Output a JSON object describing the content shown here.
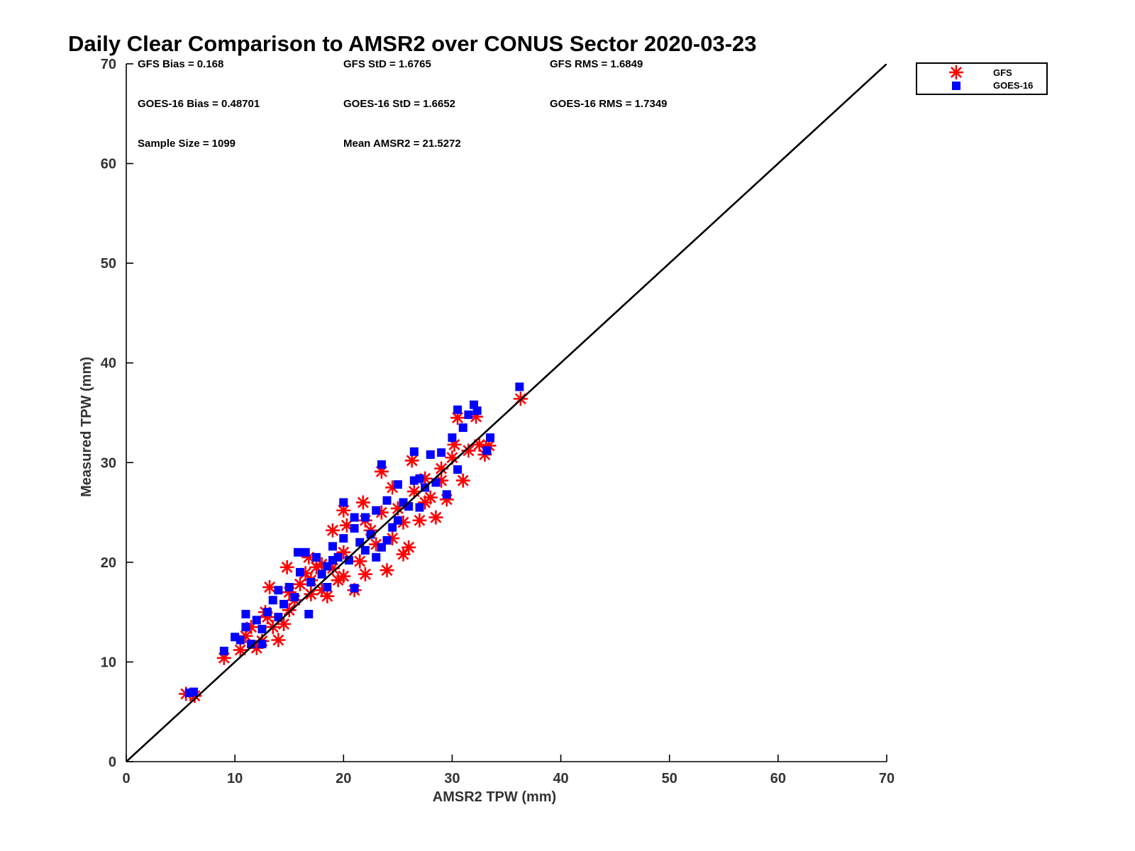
{
  "chart_data": {
    "type": "scatter",
    "title": "Daily Clear Comparison to AMSR2 over CONUS Sector 2020-03-23",
    "xlabel": "AMSR2 TPW (mm)",
    "ylabel": "Measured TPW (mm)",
    "xlim": [
      0,
      70
    ],
    "ylim": [
      0,
      70
    ],
    "xticks": [
      0,
      10,
      20,
      30,
      40,
      50,
      60,
      70
    ],
    "yticks": [
      0,
      10,
      20,
      30,
      40,
      50,
      60,
      70
    ],
    "grid": false,
    "legend_position": "outside-top-right",
    "reference_line": {
      "x": [
        0,
        70
      ],
      "y": [
        0,
        70
      ],
      "color": "#000000"
    },
    "stats": [
      "GFS Bias = 0.168",
      "GFS StD = 1.6765",
      "GFS RMS = 1.6849",
      "GOES-16 Bias = 0.48701",
      "GOES-16 StD = 1.6652",
      "GOES-16 RMS = 1.7349",
      "Sample Size = 1099",
      "Mean AMSR2 = 21.5272"
    ],
    "series": [
      {
        "name": "GFS",
        "color": "#ff0000",
        "marker": "asterisk",
        "points": [
          [
            5.5,
            6.8
          ],
          [
            6.3,
            6.6
          ],
          [
            9,
            10.4
          ],
          [
            10.5,
            11.2
          ],
          [
            11,
            12.6
          ],
          [
            11.5,
            13.5
          ],
          [
            12,
            11.4
          ],
          [
            12.5,
            12.1
          ],
          [
            13,
            14.5
          ],
          [
            13.2,
            17.5
          ],
          [
            14,
            12.2
          ],
          [
            14.5,
            13.8
          ],
          [
            15,
            15.2
          ],
          [
            15.5,
            16.2
          ],
          [
            16,
            17.8
          ],
          [
            16.5,
            18.9
          ],
          [
            17,
            16.8
          ],
          [
            17.5,
            19.5
          ],
          [
            18,
            17.2
          ],
          [
            18.5,
            16.6
          ],
          [
            19,
            19.4
          ],
          [
            19.5,
            18.2
          ],
          [
            20,
            21
          ],
          [
            20.3,
            23.7
          ],
          [
            20,
            25.2
          ],
          [
            21,
            17.2
          ],
          [
            21.5,
            20.1
          ],
          [
            22,
            18.8
          ],
          [
            22.5,
            23.2
          ],
          [
            23,
            21.8
          ],
          [
            23.5,
            29.1
          ],
          [
            24,
            19.2
          ],
          [
            24.5,
            22.4
          ],
          [
            25,
            25.4
          ],
          [
            25.5,
            20.8
          ],
          [
            26,
            21.5
          ],
          [
            26.3,
            30.2
          ],
          [
            26.5,
            27.1
          ],
          [
            27,
            24.2
          ],
          [
            27.5,
            28.4
          ],
          [
            28,
            26.5
          ],
          [
            28.5,
            24.5
          ],
          [
            29,
            28.2
          ],
          [
            29.5,
            26.3
          ],
          [
            30,
            30.5
          ],
          [
            30.5,
            34.5
          ],
          [
            31,
            28.2
          ],
          [
            31.5,
            31.2
          ],
          [
            32.2,
            34.6
          ],
          [
            32.5,
            31.8
          ],
          [
            33,
            30.8
          ],
          [
            33.4,
            31.7
          ],
          [
            36.3,
            36.4
          ],
          [
            14.8,
            19.5
          ],
          [
            16.8,
            20.5
          ],
          [
            19,
            23.2
          ],
          [
            21.8,
            26
          ],
          [
            24.5,
            27.5
          ],
          [
            22,
            24.2
          ],
          [
            18,
            19.8
          ],
          [
            15,
            17
          ],
          [
            12.8,
            15
          ],
          [
            23.5,
            25
          ],
          [
            25.5,
            24
          ],
          [
            27.5,
            26
          ],
          [
            29,
            29.4
          ],
          [
            30.2,
            31.8
          ],
          [
            20,
            18.6
          ],
          [
            17,
            18.2
          ],
          [
            13.5,
            13.5
          ]
        ]
      },
      {
        "name": "GOES-16",
        "color": "#0000ff",
        "marker": "square",
        "points": [
          [
            5.8,
            6.9
          ],
          [
            6.2,
            7
          ],
          [
            9,
            11.1
          ],
          [
            10,
            12.5
          ],
          [
            10.5,
            12.2
          ],
          [
            11,
            13.5
          ],
          [
            11.5,
            11.8
          ],
          [
            12,
            14.2
          ],
          [
            12.5,
            13.3
          ],
          [
            13,
            15
          ],
          [
            13.5,
            16.2
          ],
          [
            14,
            14.5
          ],
          [
            14.5,
            15.8
          ],
          [
            15,
            17.5
          ],
          [
            15.5,
            16.5
          ],
          [
            15.8,
            21
          ],
          [
            16.5,
            21
          ],
          [
            16.8,
            14.8
          ],
          [
            17,
            18
          ],
          [
            17.5,
            20.5
          ],
          [
            18,
            18.8
          ],
          [
            18.5,
            19.6
          ],
          [
            19,
            21.6
          ],
          [
            19.5,
            20.5
          ],
          [
            20,
            26
          ],
          [
            20,
            22.4
          ],
          [
            20.5,
            20.2
          ],
          [
            21,
            17.4
          ],
          [
            21,
            23.4
          ],
          [
            21.5,
            22
          ],
          [
            22,
            24.5
          ],
          [
            22.5,
            22.8
          ],
          [
            23,
            25.2
          ],
          [
            23.5,
            29.8
          ],
          [
            23.5,
            21.5
          ],
          [
            24,
            26.2
          ],
          [
            24.5,
            23.5
          ],
          [
            25,
            27.8
          ],
          [
            25.5,
            26
          ],
          [
            26,
            25.6
          ],
          [
            26.5,
            31.1
          ],
          [
            27,
            28.4
          ],
          [
            27.5,
            27.5
          ],
          [
            28,
            30.8
          ],
          [
            28.5,
            28
          ],
          [
            29,
            31
          ],
          [
            29.5,
            26.8
          ],
          [
            30,
            32.5
          ],
          [
            30.5,
            29.3
          ],
          [
            30.5,
            35.3
          ],
          [
            31,
            33.5
          ],
          [
            31.5,
            34.8
          ],
          [
            32,
            35.8
          ],
          [
            32.3,
            35.2
          ],
          [
            33.2,
            31.2
          ],
          [
            33.5,
            32.5
          ],
          [
            36.2,
            37.6
          ],
          [
            14,
            17.2
          ],
          [
            16,
            19
          ],
          [
            18.5,
            17.5
          ],
          [
            21,
            24.5
          ],
          [
            23,
            20.5
          ],
          [
            25,
            24.2
          ],
          [
            27,
            25.5
          ],
          [
            22,
            21.2
          ],
          [
            24,
            22.2
          ],
          [
            26.5,
            28.2
          ],
          [
            12.5,
            11.8
          ],
          [
            11,
            14.8
          ],
          [
            19,
            20.2
          ]
        ]
      }
    ]
  }
}
